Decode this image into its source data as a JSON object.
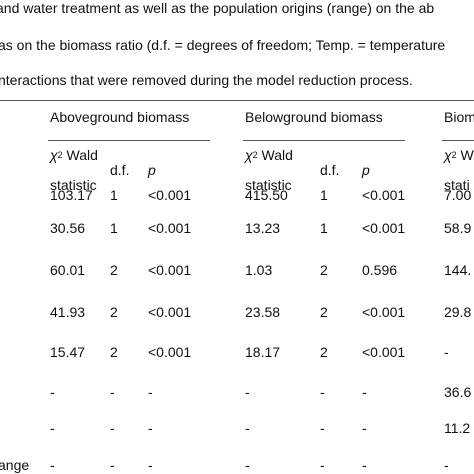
{
  "caption": [
    "and water treatment as well as the population origins (range) on the ab",
    "as on the biomass ratio (d.f. = degrees of freedom; Temp. = temperature",
    "nteractions that were removed during the model reduction process."
  ],
  "table": {
    "groups": [
      "Aboveground biomass",
      "Belowground biomass",
      "Biom"
    ],
    "subheaders": [
      {
        "symbol": "χ",
        "sup": "2",
        "label": " Wald",
        "line2": "statistic",
        "df": "d.f.",
        "p": "p"
      },
      {
        "symbol": "χ",
        "sup": "2",
        "label": " Wald",
        "line2": "statistic",
        "df": "d.f.",
        "p": "p"
      },
      {
        "symbol": "χ",
        "sup": "2",
        "label": " W",
        "line2": "stati"
      }
    ],
    "rows": [
      {
        "label": null,
        "cells": [
          "103.17",
          "1",
          "<0.001",
          "415.50",
          "1",
          "<0.001",
          "7.00"
        ]
      },
      {
        "label": null,
        "cells": [
          "30.56",
          "1",
          "<0.001",
          "13.23",
          "1",
          "<0.001",
          "58.9"
        ]
      },
      {
        "label": null,
        "cells": [
          "60.01",
          "2",
          "<0.001",
          "1.03",
          "2",
          "0.596",
          "144."
        ]
      },
      {
        "label": null,
        "cells": [
          "41.93",
          "2",
          "<0.001",
          "23.58",
          "2",
          "<0.001",
          "29.8"
        ]
      },
      {
        "label": null,
        "cells": [
          "15.47",
          "2",
          "<0.001",
          "18.17",
          "2",
          "<0.001",
          "-"
        ]
      },
      {
        "label": null,
        "cells": [
          "-",
          "-",
          "-",
          "-",
          "-",
          "-",
          "36.6"
        ]
      },
      {
        "label": null,
        "cells": [
          "-",
          "-",
          "-",
          "-",
          "-",
          "-",
          "11.2"
        ]
      },
      {
        "label": "ange",
        "cells": [
          "-",
          "-",
          "-",
          "-",
          "-",
          "-",
          "-"
        ]
      }
    ]
  }
}
